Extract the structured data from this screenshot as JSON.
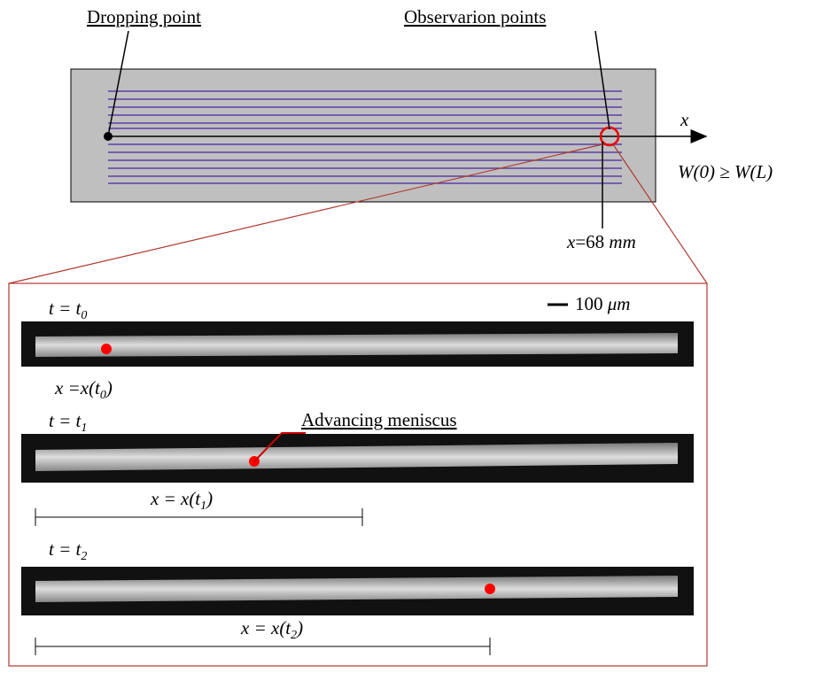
{
  "top": {
    "dropping_point": "Dropping point",
    "observation_points": "Observarion points",
    "axis_x": "x",
    "condition": "W(0) ≥ W(L)",
    "position": {
      "var": "x",
      "eq": "=68 ",
      "unit": "mm"
    }
  },
  "panels": {
    "scale_bar": {
      "value": "100 ",
      "unit": "μm"
    },
    "frames": [
      {
        "time": {
          "main": "t = t",
          "sub": "0"
        },
        "position": {
          "main": "x =x(t",
          "sub": "0",
          "end": ")"
        }
      },
      {
        "time": {
          "main": "t = t",
          "sub": "1"
        },
        "annotation": "Advancing meniscus",
        "position": {
          "main": "x = x(t",
          "sub": "1",
          "end": ")"
        }
      },
      {
        "time": {
          "main": "t = t",
          "sub": "2"
        },
        "position": {
          "main": "x = x(t",
          "sub": "2",
          "end": ")"
        }
      }
    ]
  }
}
